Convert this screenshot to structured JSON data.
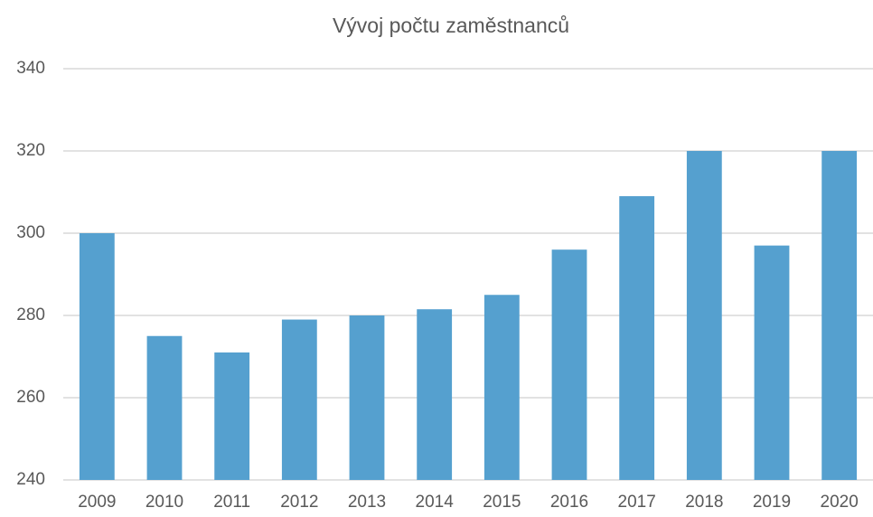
{
  "chart_data": {
    "type": "bar",
    "title": "Vývoj počtu zaměstnanců",
    "categories": [
      "2009",
      "2010",
      "2011",
      "2012",
      "2013",
      "2014",
      "2015",
      "2016",
      "2017",
      "2018",
      "2019",
      "2020"
    ],
    "values": [
      300,
      275,
      271,
      279,
      280,
      281.5,
      285,
      296,
      309,
      320,
      297,
      320
    ],
    "color": "#55a0cf",
    "ylim": [
      240,
      340
    ],
    "yticks": [
      240,
      260,
      280,
      300,
      320,
      340
    ],
    "grid": true
  }
}
